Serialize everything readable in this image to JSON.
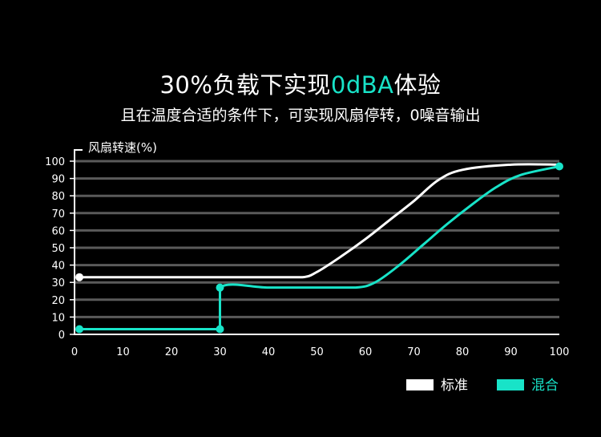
{
  "header": {
    "title_prefix": "30%负载下实现",
    "title_highlight": "0dBA",
    "title_suffix": "体验",
    "subtitle": "且在温度合适的条件下，可实现风扇停转，0噪音输出"
  },
  "colors": {
    "standard": "#ffffff",
    "hybrid": "#18e3c8",
    "grid": "#5a5a5a"
  },
  "chart_data": {
    "type": "line",
    "ylabel": "风扇转速(%)",
    "xlabel": "",
    "x_ticks": [
      0,
      10,
      20,
      30,
      40,
      50,
      60,
      70,
      80,
      90,
      100
    ],
    "y_ticks": [
      0,
      10,
      20,
      30,
      40,
      50,
      60,
      70,
      80,
      90,
      100
    ],
    "xlim": [
      0,
      100
    ],
    "ylim": [
      0,
      100
    ],
    "grid": true,
    "legend_position": "bottom-right",
    "series": [
      {
        "name": "标准",
        "color": "#ffffff",
        "points": [
          [
            1,
            33
          ],
          [
            10,
            33
          ],
          [
            20,
            33
          ],
          [
            30,
            33
          ],
          [
            40,
            33
          ],
          [
            47,
            33
          ],
          [
            50,
            36
          ],
          [
            55,
            45
          ],
          [
            60,
            55
          ],
          [
            65,
            66
          ],
          [
            70,
            77
          ],
          [
            75,
            89
          ],
          [
            80,
            95
          ],
          [
            90,
            98
          ],
          [
            100,
            98
          ]
        ],
        "markers": [
          [
            1,
            33
          ]
        ]
      },
      {
        "name": "混合",
        "color": "#18e3c8",
        "points": [
          [
            1,
            3
          ],
          [
            10,
            3
          ],
          [
            20,
            3
          ],
          [
            30,
            3
          ],
          [
            30,
            27
          ],
          [
            40,
            27
          ],
          [
            50,
            27
          ],
          [
            58,
            27
          ],
          [
            62,
            30
          ],
          [
            67,
            40
          ],
          [
            72,
            52
          ],
          [
            77,
            64
          ],
          [
            82,
            75
          ],
          [
            87,
            85
          ],
          [
            92,
            92
          ],
          [
            100,
            97
          ]
        ],
        "markers": [
          [
            1,
            3
          ],
          [
            30,
            3
          ],
          [
            30,
            27
          ],
          [
            100,
            97
          ]
        ]
      }
    ]
  }
}
